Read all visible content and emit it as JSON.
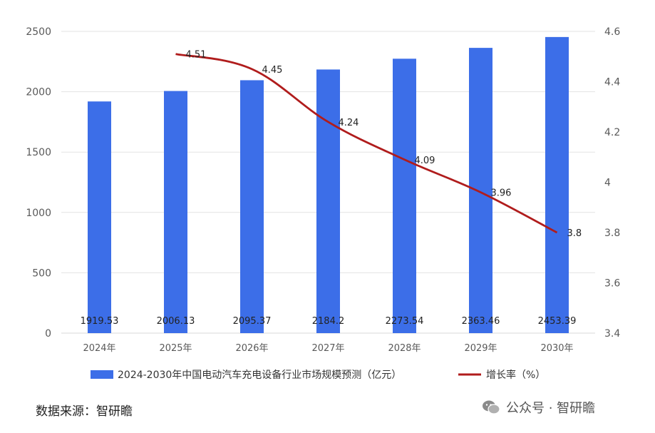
{
  "chart_data": {
    "type": "bar",
    "categories": [
      "2024年",
      "2025年",
      "2026年",
      "2027年",
      "2028年",
      "2029年",
      "2030年"
    ],
    "series": [
      {
        "name": "2024-2030年中国电动汽车充电设备行业市场规模预测（亿元）",
        "type": "bar",
        "axis": "left",
        "color": "#3C6EE8",
        "values": [
          1919.53,
          2006.13,
          2095.37,
          2184.2,
          2273.54,
          2363.46,
          2453.39
        ],
        "labels": [
          "1919.53",
          "2006.13",
          "2095.37",
          "2184.2",
          "2273.54",
          "2363.46",
          "2453.39"
        ]
      },
      {
        "name": "增长率（%）",
        "type": "line",
        "axis": "right",
        "color": "#B01C1C",
        "values": [
          null,
          4.51,
          4.45,
          4.24,
          4.09,
          3.96,
          3.8
        ],
        "labels": [
          "",
          "4.51",
          "4.45",
          "4.24",
          "4.09",
          "3.96",
          "3.8"
        ]
      }
    ],
    "y_left": {
      "ylim": [
        0,
        2500
      ],
      "ticks": [
        0,
        500,
        1000,
        1500,
        2000,
        2500
      ],
      "tick_labels": [
        "0",
        "500",
        "1000",
        "1500",
        "2000",
        "2500"
      ]
    },
    "y_right": {
      "ylim": [
        3.4,
        4.6
      ],
      "ticks": [
        3.4,
        3.6,
        3.8,
        4.0,
        4.2,
        4.4,
        4.6
      ],
      "tick_labels": [
        "3.4",
        "3.6",
        "3.8",
        "4",
        "4.2",
        "4.4",
        "4.6"
      ]
    },
    "grid": true,
    "legend_position": "bottom"
  },
  "source_text": "数据来源：智研瞻",
  "watermark": {
    "icon": "wechat-icon",
    "text": "公众号 · 智研瞻"
  }
}
